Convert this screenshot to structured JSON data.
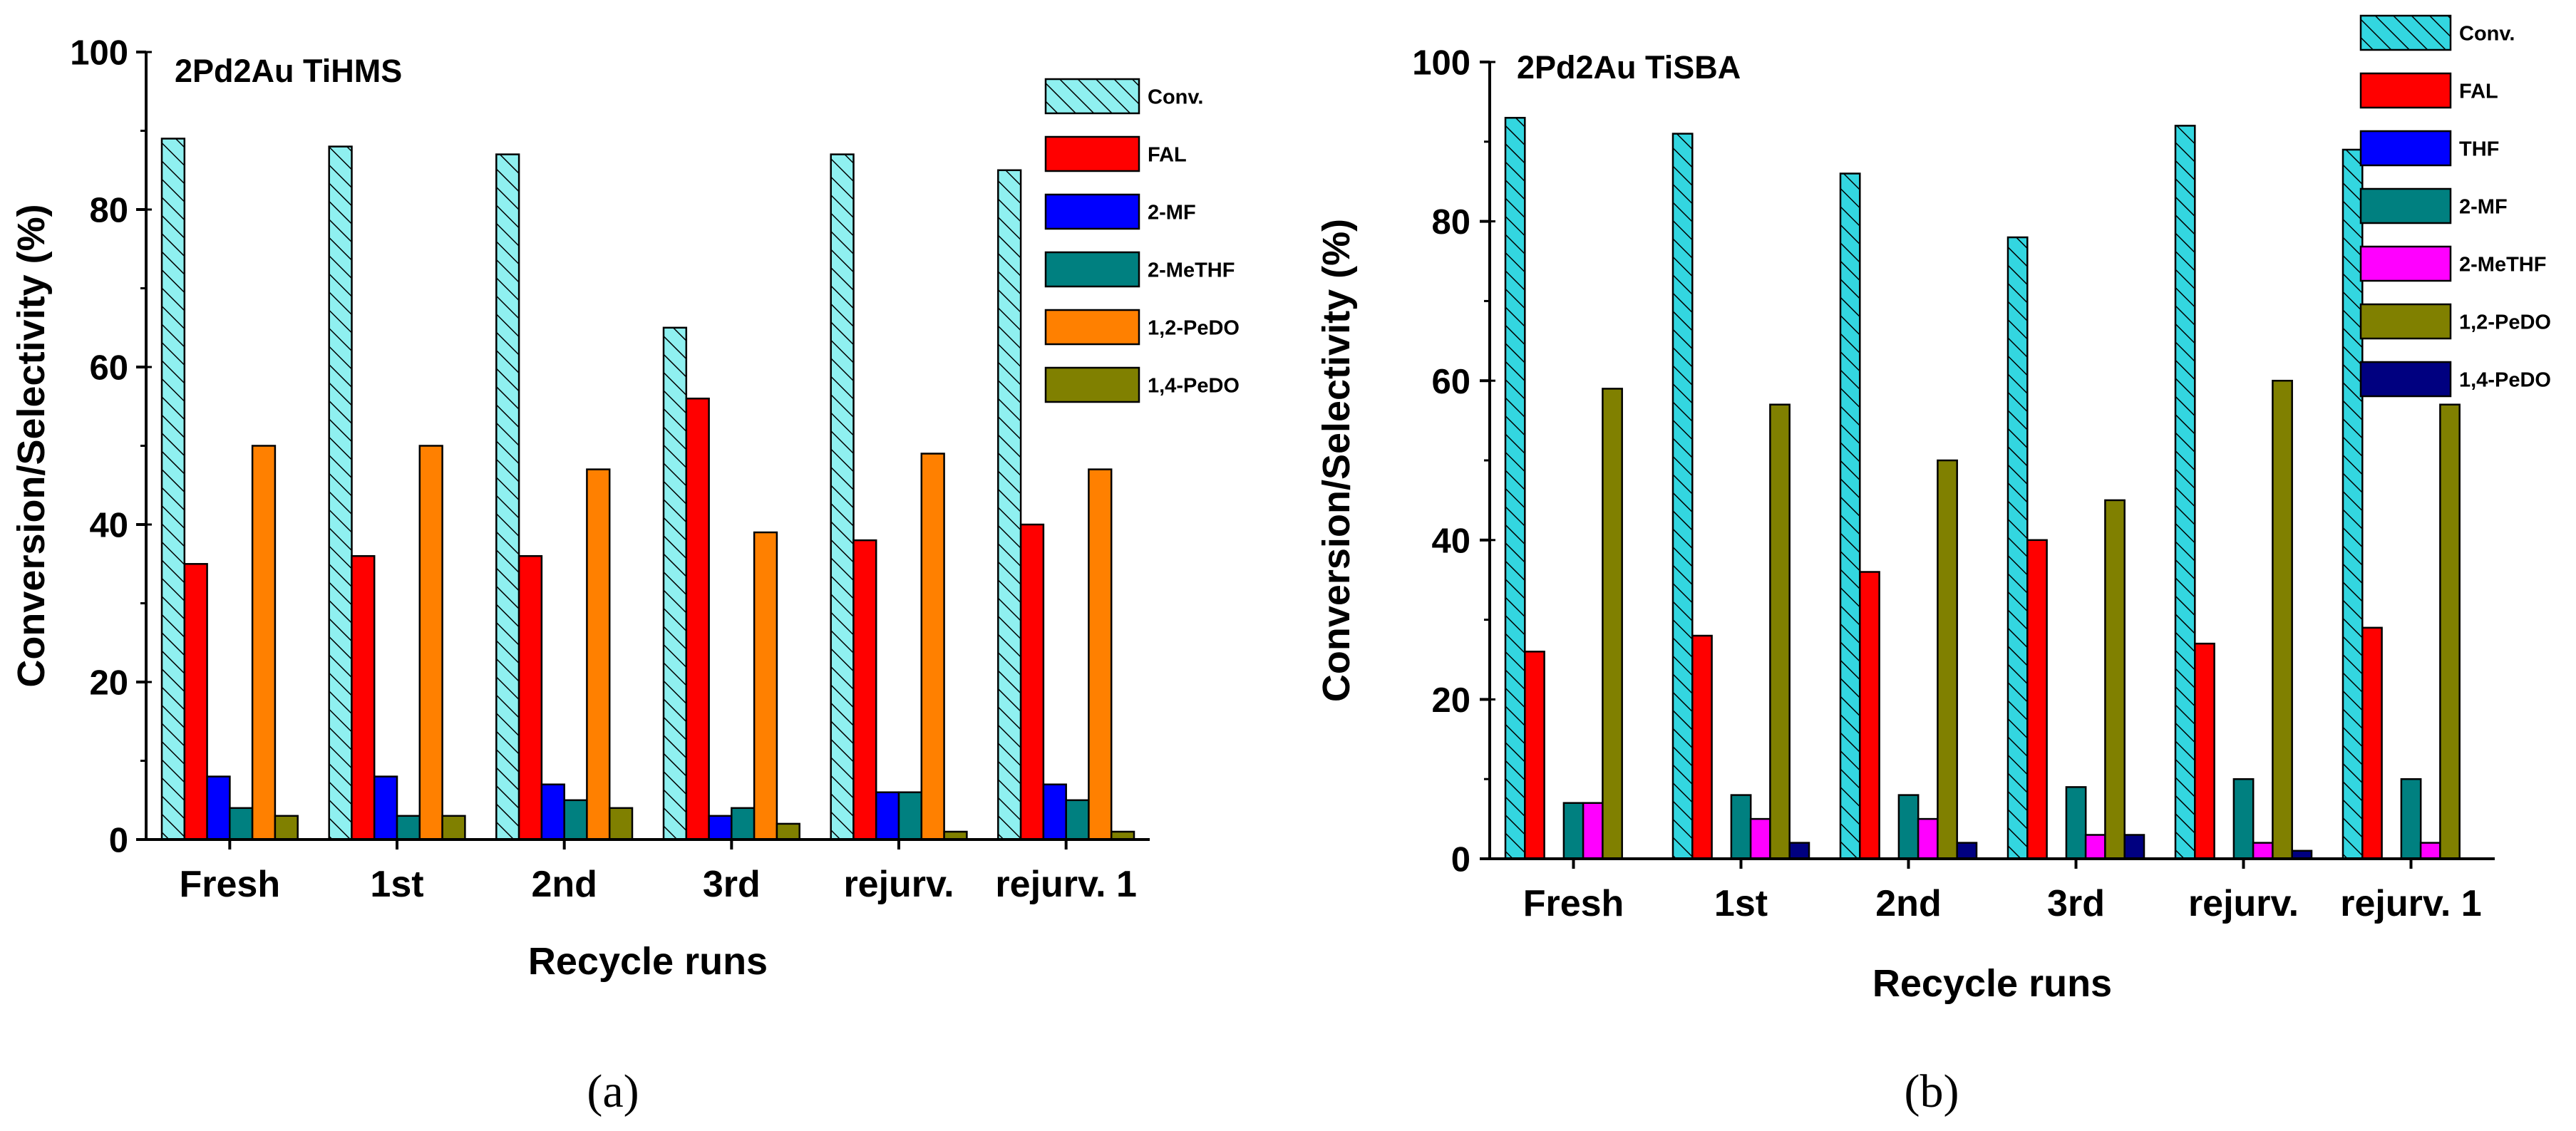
{
  "figure": {
    "captions": [
      "(a)",
      "(b)"
    ]
  },
  "chart_data": [
    {
      "type": "bar",
      "title": "2Pd2Au TiHMS",
      "xlabel": "Recycle runs",
      "ylabel": "Conversion/Selectivity (%)",
      "ylim": [
        0,
        100
      ],
      "yticks": [
        0,
        20,
        40,
        60,
        80,
        100
      ],
      "grid": false,
      "legend_position": "top-right",
      "categories": [
        "Fresh",
        "1st",
        "2nd",
        "3rd",
        "rejurv.",
        "rejurv. 1"
      ],
      "series": [
        {
          "name": "Conv.",
          "color": "#8ff0f0",
          "hatch": true,
          "values": [
            89,
            88,
            87,
            65,
            87,
            85
          ]
        },
        {
          "name": "FAL",
          "color": "#ff0000",
          "values": [
            35,
            36,
            36,
            56,
            38,
            40
          ]
        },
        {
          "name": "2-MF",
          "color": "#0000ff",
          "values": [
            8,
            8,
            7,
            3,
            6,
            7
          ]
        },
        {
          "name": "2-MeTHF",
          "color": "#008080",
          "values": [
            4,
            3,
            5,
            4,
            6,
            5
          ]
        },
        {
          "name": "1,2-PeDO",
          "color": "#ff8000",
          "values": [
            50,
            50,
            47,
            39,
            49,
            47
          ]
        },
        {
          "name": "1,4-PeDO",
          "color": "#808000",
          "values": [
            3,
            3,
            4,
            2,
            1,
            1
          ]
        }
      ]
    },
    {
      "type": "bar",
      "title": "2Pd2Au TiSBA",
      "xlabel": "Recycle runs",
      "ylabel": "Conversion/Selectivity (%)",
      "ylim": [
        0,
        100
      ],
      "yticks": [
        0,
        20,
        40,
        60,
        80,
        100
      ],
      "grid": false,
      "legend_position": "top-right",
      "categories": [
        "Fresh",
        "1st",
        "2nd",
        "3rd",
        "rejurv.",
        "rejurv. 1"
      ],
      "series": [
        {
          "name": "Conv.",
          "color": "#33d6e0",
          "hatch": true,
          "values": [
            93,
            91,
            86,
            78,
            92,
            89
          ]
        },
        {
          "name": "FAL",
          "color": "#ff0000",
          "values": [
            26,
            28,
            36,
            40,
            27,
            29
          ]
        },
        {
          "name": "THF",
          "color": "#0000ff",
          "values": [
            0,
            0,
            0,
            0,
            0,
            0
          ]
        },
        {
          "name": "2-MF",
          "color": "#008080",
          "values": [
            7,
            8,
            8,
            9,
            10,
            10
          ]
        },
        {
          "name": "2-MeTHF",
          "color": "#ff00ff",
          "values": [
            7,
            5,
            5,
            3,
            2,
            2
          ]
        },
        {
          "name": "1,2-PeDO",
          "color": "#808000",
          "values": [
            59,
            57,
            50,
            45,
            60,
            57
          ]
        },
        {
          "name": "1,4-PeDO",
          "color": "#000080",
          "values": [
            0,
            2,
            2,
            3,
            1,
            0
          ]
        }
      ]
    }
  ]
}
